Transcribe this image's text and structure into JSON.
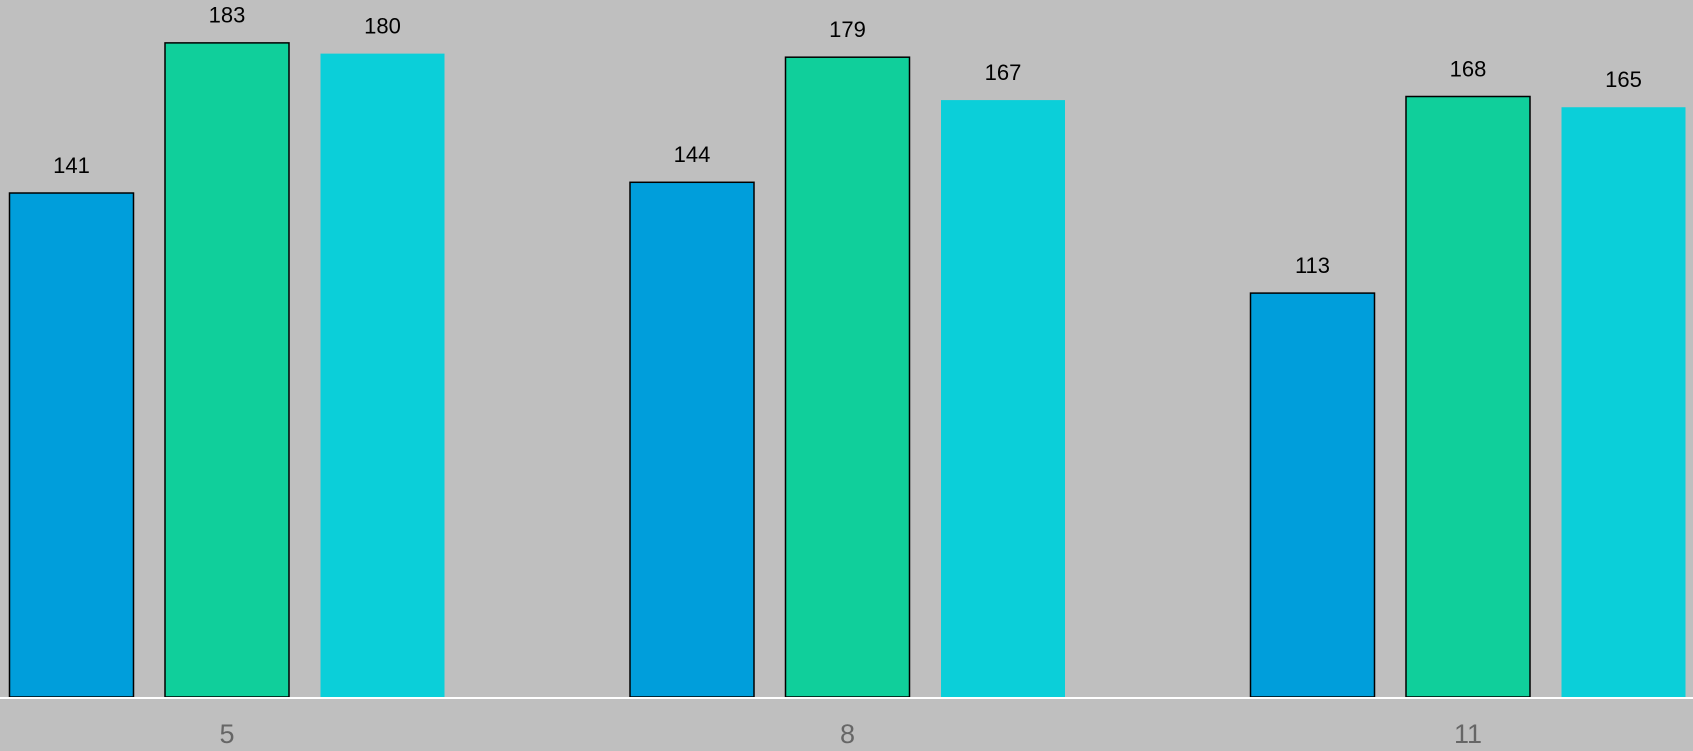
{
  "chart_data": {
    "type": "bar",
    "categories": [
      "5",
      "8",
      "11"
    ],
    "series": [
      {
        "color": "#009edb",
        "values": [
          141,
          144,
          113
        ]
      },
      {
        "color": "#10cf9b",
        "values": [
          183,
          179,
          168
        ]
      },
      {
        "color": "#0bcfd9",
        "values": [
          180,
          167,
          165
        ]
      }
    ],
    "ylim": [
      0,
      195
    ]
  }
}
